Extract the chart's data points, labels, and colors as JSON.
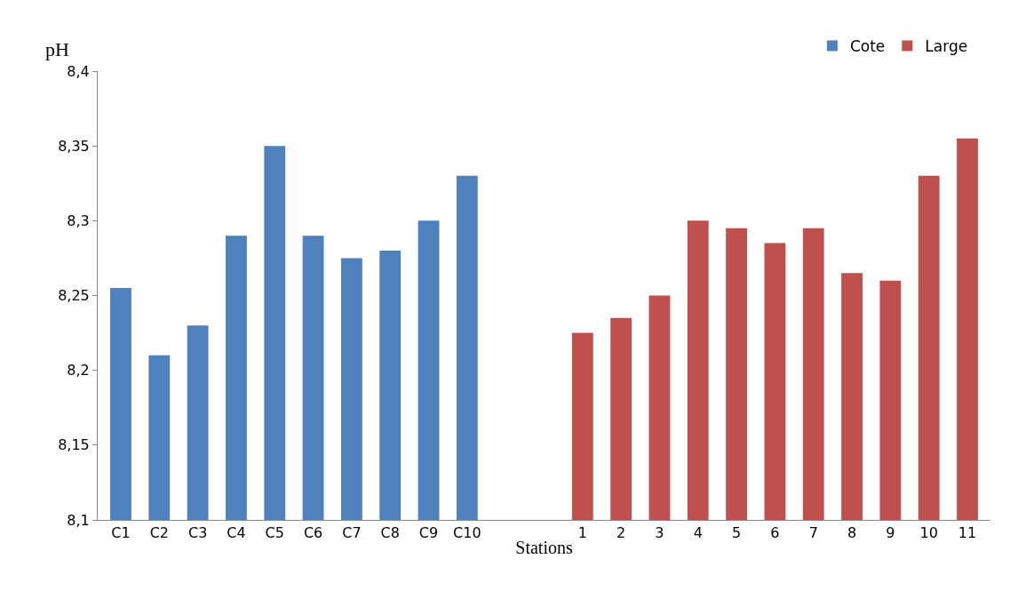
{
  "chart_data": {
    "type": "bar",
    "ylabel": "pH",
    "xlabel": "Stations",
    "categories": [
      "C1",
      "C2",
      "C3",
      "C4",
      "C5",
      "C6",
      "C7",
      "C8",
      "C9",
      "C10",
      null,
      null,
      "1",
      "2",
      "3",
      "4",
      "5",
      "6",
      "7",
      "8",
      "9",
      "10",
      "11"
    ],
    "series": [
      {
        "name": "Cote",
        "color": "#4f81bd",
        "values": [
          8.255,
          8.21,
          8.23,
          8.29,
          8.35,
          8.29,
          8.275,
          8.28,
          8.3,
          8.33,
          null,
          null,
          null,
          null,
          null,
          null,
          null,
          null,
          null,
          null,
          null,
          null,
          null
        ]
      },
      {
        "name": "Large",
        "color": "#c0504d",
        "values": [
          null,
          null,
          null,
          null,
          null,
          null,
          null,
          null,
          null,
          null,
          null,
          null,
          8.225,
          8.235,
          8.25,
          8.3,
          8.295,
          8.285,
          8.295,
          8.265,
          8.26,
          8.33,
          8.355
        ]
      }
    ],
    "ylim": [
      8.1,
      8.4
    ],
    "yticks": [
      {
        "value": 8.1,
        "label": "8,1"
      },
      {
        "value": 8.15,
        "label": "8,15"
      },
      {
        "value": 8.2,
        "label": "8,2"
      },
      {
        "value": 8.25,
        "label": "8,25"
      },
      {
        "value": 8.3,
        "label": "8,3"
      },
      {
        "value": 8.35,
        "label": "8,35"
      },
      {
        "value": 8.4,
        "label": "8,4"
      }
    ],
    "legend": "top right"
  }
}
